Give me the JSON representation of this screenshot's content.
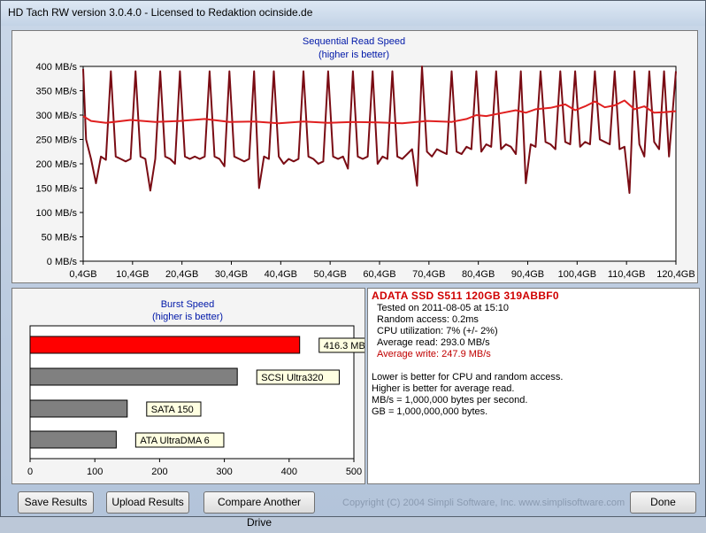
{
  "window": {
    "title": "HD Tach RW version 3.0.4.0 - Licensed to Redaktion ocinside.de"
  },
  "sequential_chart": {
    "title": "Sequential Read Speed",
    "subtitle": "(higher is better)",
    "y_ticks": [
      "400 MB/s",
      "350 MB/s",
      "300 MB/s",
      "250 MB/s",
      "200 MB/s",
      "150 MB/s",
      "100 MB/s",
      "50 MB/s",
      "0 MB/s"
    ],
    "x_ticks": [
      "0,4GB",
      "10,4GB",
      "20,4GB",
      "30,4GB",
      "40,4GB",
      "50,4GB",
      "60,4GB",
      "70,4GB",
      "80,4GB",
      "90,4GB",
      "100,4GB",
      "110,4GB",
      "120,4GB"
    ]
  },
  "burst_chart": {
    "title": "Burst Speed",
    "subtitle": "(higher is better)",
    "x_ticks": [
      "0",
      "100",
      "200",
      "300",
      "400",
      "500"
    ]
  },
  "chart_data": [
    {
      "type": "line",
      "title": "Sequential Read Speed",
      "subtitle": "(higher is better)",
      "xlabel": "",
      "ylabel": "",
      "xlim": [
        0.4,
        120.4
      ],
      "ylim": [
        0,
        400
      ],
      "grid": false,
      "series": [
        {
          "color": "#e02020",
          "x": [
            0.4,
            2,
            5,
            10,
            15,
            20,
            25,
            30,
            35,
            40,
            45,
            50,
            55,
            60,
            65,
            70,
            75,
            78,
            80,
            82,
            85,
            88,
            90,
            92,
            95,
            98,
            100,
            102,
            104,
            106,
            108,
            110,
            112,
            114,
            116,
            118,
            120.4
          ],
          "values": [
            298,
            288,
            284,
            290,
            286,
            288,
            292,
            286,
            287,
            283,
            287,
            284,
            286,
            285,
            283,
            288,
            286,
            292,
            300,
            298,
            304,
            310,
            305,
            312,
            315,
            322,
            310,
            318,
            328,
            316,
            320,
            330,
            312,
            318,
            305,
            306,
            308
          ]
        },
        {
          "color": "#7a0c14",
          "x": [
            0.4,
            1,
            2,
            3,
            4,
            5,
            6,
            7,
            8,
            9,
            10,
            11,
            12,
            13,
            14,
            15,
            16,
            17,
            18,
            19,
            20,
            21,
            22,
            23,
            24,
            25,
            26,
            27,
            28,
            29,
            30,
            31,
            32,
            33,
            34,
            35,
            36,
            37,
            38,
            39,
            40,
            41,
            42,
            43,
            44,
            45,
            46,
            47,
            48,
            49,
            50,
            51,
            52,
            53,
            54,
            55,
            56,
            57,
            58,
            59,
            60,
            61,
            62,
            63,
            64,
            65,
            66,
            67,
            68,
            69,
            70,
            71,
            72,
            73,
            74,
            75,
            76,
            77,
            78,
            79,
            80,
            81,
            82,
            83,
            84,
            85,
            86,
            87,
            88,
            89,
            90,
            91,
            92,
            93,
            94,
            95,
            96,
            97,
            98,
            99,
            100,
            101,
            102,
            103,
            104,
            105,
            106,
            107,
            108,
            109,
            110,
            111,
            112,
            113,
            114,
            115,
            116,
            117,
            118,
            119,
            120.4
          ],
          "values": [
            395,
            250,
            210,
            160,
            215,
            208,
            390,
            215,
            210,
            205,
            210,
            390,
            215,
            210,
            145,
            210,
            390,
            215,
            210,
            200,
            390,
            215,
            210,
            215,
            210,
            215,
            390,
            215,
            210,
            195,
            390,
            215,
            210,
            205,
            210,
            390,
            150,
            215,
            210,
            390,
            215,
            200,
            210,
            205,
            210,
            390,
            215,
            210,
            200,
            205,
            390,
            215,
            210,
            215,
            190,
            390,
            215,
            210,
            215,
            390,
            200,
            215,
            210,
            390,
            215,
            210,
            220,
            230,
            155,
            400,
            225,
            215,
            230,
            225,
            220,
            390,
            225,
            220,
            235,
            230,
            390,
            225,
            240,
            235,
            390,
            230,
            240,
            235,
            220,
            390,
            160,
            240,
            235,
            390,
            245,
            240,
            230,
            390,
            245,
            240,
            390,
            235,
            245,
            240,
            390,
            250,
            245,
            240,
            390,
            230,
            235,
            140,
            390,
            240,
            215,
            390,
            245,
            230,
            390,
            215,
            390
          ]
        }
      ]
    },
    {
      "type": "bar",
      "title": "Burst Speed",
      "subtitle": "(higher is better)",
      "xlim": [
        0,
        500
      ],
      "grid": false,
      "categories": [
        "416.3 MB/s",
        "SCSI Ultra320",
        "SATA 150",
        "ATA UltraDMA 6"
      ],
      "values": [
        416.3,
        320,
        150,
        133
      ],
      "colors": [
        "#ff0000",
        "#808080",
        "#808080",
        "#808080"
      ]
    }
  ],
  "info": {
    "drive": "ADATA SSD S511 120GB 319ABBF0",
    "lines": [
      "Tested on 2011-08-05 at 15:10",
      "Random access: 0.2ms",
      "CPU utilization: 7% (+/- 2%)",
      "Average read: 293.0 MB/s",
      "Average write: 247.9 MB/s"
    ],
    "notes": [
      "Lower is better for CPU and random access.",
      "Higher is better for average read.",
      "MB/s = 1,000,000 bytes per second.",
      "GB = 1,000,000,000 bytes."
    ],
    "write_color": "#c00000"
  },
  "buttons": {
    "save": "Save Results",
    "upload": "Upload Results",
    "compare": "Compare Another Drive",
    "done": "Done"
  },
  "footer": {
    "copyright": "Copyright (C) 2004 Simpli Software, Inc. www.simplisoftware.com"
  }
}
